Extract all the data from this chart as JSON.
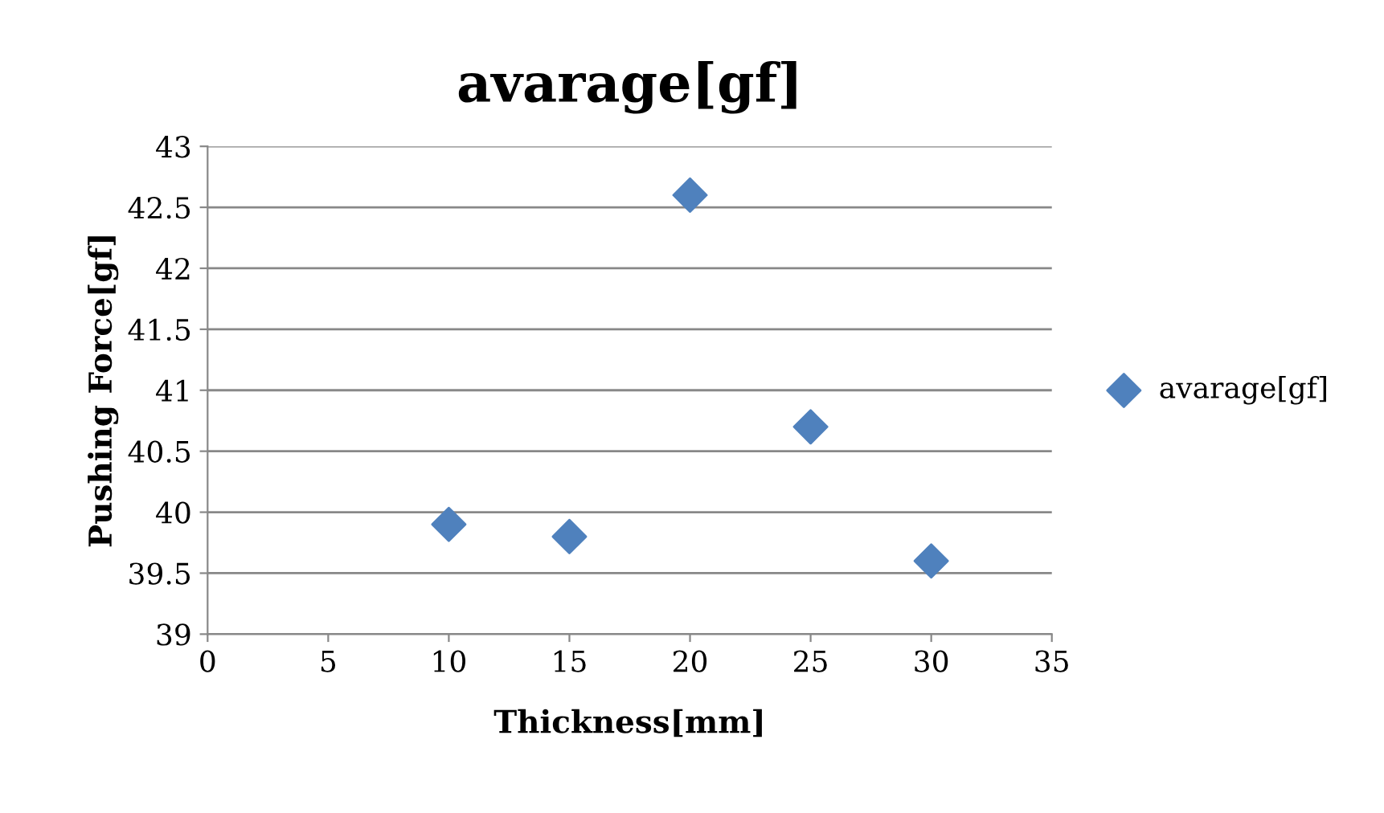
{
  "chart_data": {
    "type": "scatter",
    "title": "avarage[gf]",
    "xlabel": "Thickness[mm]",
    "ylabel": "Pushing Force[gf]",
    "x": [
      10,
      15,
      20,
      25,
      30
    ],
    "series": [
      {
        "name": "avarage[gf]",
        "color": "#4f81bd",
        "values": [
          39.9,
          39.8,
          42.6,
          40.7,
          39.6
        ]
      }
    ],
    "xlim": [
      0,
      35
    ],
    "xticks": [
      0,
      5,
      10,
      15,
      20,
      25,
      30,
      35
    ],
    "ylim": [
      39,
      43
    ],
    "yticks": [
      39,
      39.5,
      40,
      40.5,
      41,
      41.5,
      42,
      42.5,
      43
    ],
    "grid": "y",
    "legend": "right",
    "marker": "diamond"
  }
}
